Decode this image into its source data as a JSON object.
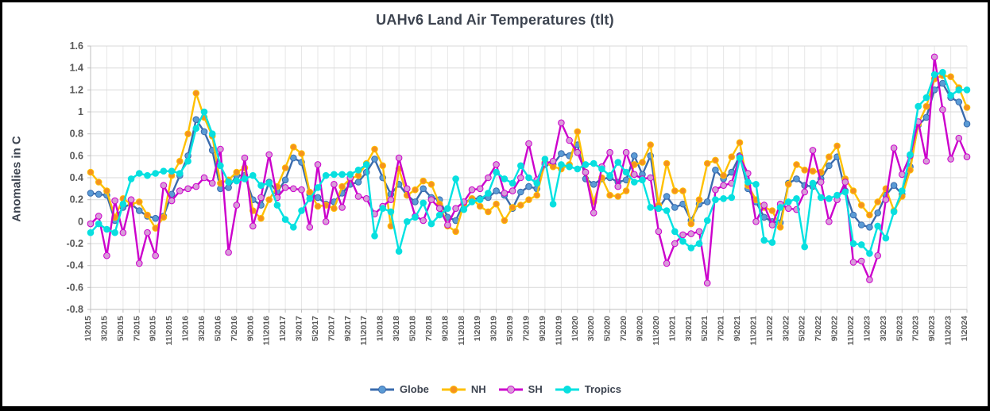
{
  "chart": {
    "title": "UAHv6 Land Air Temperatures (tlt)",
    "y_axis_label": "Anomalies in C"
  },
  "legend": {
    "items": [
      {
        "label": "Globe"
      },
      {
        "label": "NH"
      },
      {
        "label": "SH"
      },
      {
        "label": "Tropics"
      }
    ]
  },
  "chart_data": {
    "type": "line",
    "title": "UAHv6 Land Air Temperatures (tlt)",
    "xlabel": "",
    "ylabel": "Anomalies in C",
    "ylim": [
      -0.8,
      1.6
    ],
    "y_tick_step": 0.2,
    "x_label_interval": 2,
    "grid": true,
    "legend_position": "bottom",
    "x": [
      "1\\2015",
      "2\\2015",
      "3\\2015",
      "4\\2015",
      "5\\2015",
      "6\\2015",
      "7\\2015",
      "8\\2015",
      "9\\2015",
      "10\\2015",
      "11\\2015",
      "12\\2015",
      "1\\2016",
      "2\\2016",
      "3\\2016",
      "4\\2016",
      "5\\2016",
      "6\\2016",
      "7\\2016",
      "8\\2016",
      "9\\2016",
      "10\\2016",
      "11\\2016",
      "12\\2016",
      "1\\2017",
      "2\\2017",
      "3\\2017",
      "4\\2017",
      "5\\2017",
      "6\\2017",
      "7\\2017",
      "8\\2017",
      "9\\2017",
      "10\\2017",
      "11\\2017",
      "12\\2017",
      "1\\2018",
      "2\\2018",
      "3\\2018",
      "4\\2018",
      "5\\2018",
      "6\\2018",
      "7\\2018",
      "8\\2018",
      "9\\2018",
      "10\\2018",
      "11\\2018",
      "12\\2018",
      "1\\2019",
      "2\\2019",
      "3\\2019",
      "4\\2019",
      "5\\2019",
      "6\\2019",
      "7\\2019",
      "8\\2019",
      "9\\2019",
      "10\\2019",
      "11\\2019",
      "12\\2019",
      "1\\2020",
      "2\\2020",
      "3\\2020",
      "4\\2020",
      "5\\2020",
      "6\\2020",
      "7\\2020",
      "8\\2020",
      "9\\2020",
      "10\\2020",
      "11\\2020",
      "12\\2020",
      "1\\2021",
      "2\\2021",
      "3\\2021",
      "4\\2021",
      "5\\2021",
      "6\\2021",
      "7\\2021",
      "8\\2021",
      "9\\2021",
      "10\\2021",
      "11\\2021",
      "12\\2021",
      "1\\2022",
      "2\\2022",
      "3\\2022",
      "4\\2022",
      "5\\2022",
      "6\\2022",
      "7\\2022",
      "8\\2022",
      "9\\2022",
      "10\\2022",
      "11\\2022",
      "12\\2022",
      "1\\2023",
      "2\\2023",
      "3\\2023",
      "4\\2023",
      "5\\2023",
      "6\\2023",
      "7\\2023",
      "8\\2023",
      "9\\2023",
      "10\\2023",
      "11\\2023",
      "12\\2023",
      "1\\2024"
    ],
    "series": [
      {
        "name": "Globe",
        "line_color": "#3a6bad",
        "marker_color": "#5b9bd5",
        "values": [
          0.26,
          0.25,
          0.24,
          0.01,
          0.13,
          0.16,
          0.1,
          0.05,
          0.03,
          0.05,
          0.25,
          0.42,
          0.6,
          0.93,
          0.82,
          0.65,
          0.3,
          0.31,
          0.42,
          0.42,
          0.2,
          0.15,
          0.36,
          0.27,
          0.38,
          0.58,
          0.54,
          0.25,
          0.22,
          0.16,
          0.18,
          0.26,
          0.34,
          0.36,
          0.45,
          0.57,
          0.4,
          0.25,
          0.34,
          0.24,
          0.18,
          0.3,
          0.22,
          0.2,
          0.04,
          0.01,
          0.17,
          0.21,
          0.21,
          0.22,
          0.28,
          0.24,
          0.12,
          0.27,
          0.32,
          0.3,
          0.52,
          0.52,
          0.62,
          0.6,
          0.7,
          0.39,
          0.34,
          0.39,
          0.4,
          0.36,
          0.38,
          0.6,
          0.43,
          0.6,
          0.12,
          0.23,
          0.13,
          0.16,
          0.01,
          0.16,
          0.18,
          0.47,
          0.39,
          0.45,
          0.6,
          0.3,
          0.18,
          0.04,
          0.0,
          -0.01,
          0.35,
          0.39,
          0.33,
          0.32,
          0.39,
          0.51,
          0.59,
          0.28,
          0.06,
          -0.03,
          -0.05,
          0.08,
          0.24,
          0.33,
          0.25,
          0.5,
          0.88,
          0.95,
          1.2,
          1.26,
          1.13,
          1.09,
          0.89
        ]
      },
      {
        "name": "NH",
        "line_color": "#ffc000",
        "marker_color": "#f5921e",
        "values": [
          0.45,
          0.36,
          0.28,
          0.04,
          0.21,
          0.16,
          0.18,
          0.06,
          -0.06,
          0.04,
          0.42,
          0.55,
          0.8,
          1.17,
          0.95,
          0.78,
          0.35,
          0.38,
          0.45,
          0.49,
          0.1,
          0.03,
          0.2,
          0.32,
          0.49,
          0.68,
          0.62,
          0.27,
          0.14,
          0.15,
          0.12,
          0.32,
          0.39,
          0.42,
          0.53,
          0.66,
          0.51,
          -0.04,
          0.48,
          0.24,
          0.29,
          0.37,
          0.34,
          0.16,
          -0.04,
          -0.09,
          0.16,
          0.21,
          0.14,
          0.09,
          0.16,
          0.01,
          0.13,
          0.15,
          0.2,
          0.24,
          0.54,
          0.5,
          0.48,
          0.52,
          0.82,
          0.45,
          0.18,
          0.4,
          0.24,
          0.23,
          0.28,
          0.52,
          0.54,
          0.7,
          0.15,
          0.53,
          0.28,
          0.28,
          -0.02,
          0.2,
          0.53,
          0.56,
          0.42,
          0.59,
          0.72,
          0.33,
          0.2,
          0.13,
          0.1,
          -0.05,
          0.34,
          0.52,
          0.47,
          0.46,
          0.45,
          0.59,
          0.69,
          0.39,
          0.28,
          0.15,
          0.06,
          0.18,
          0.3,
          0.1,
          0.23,
          0.47,
          0.89,
          1.05,
          1.3,
          1.33,
          1.32,
          1.22,
          1.04
        ]
      },
      {
        "name": "SH",
        "line_color": "#cc00cc",
        "marker_color": "#d89bd8",
        "values": [
          -0.02,
          0.05,
          -0.31,
          0.19,
          -0.1,
          0.2,
          -0.38,
          -0.1,
          -0.31,
          0.33,
          0.19,
          0.28,
          0.3,
          0.32,
          0.4,
          0.35,
          0.66,
          -0.28,
          0.15,
          0.58,
          -0.04,
          0.22,
          0.61,
          0.22,
          0.31,
          0.3,
          0.29,
          -0.05,
          0.52,
          0.0,
          0.34,
          0.13,
          0.4,
          0.23,
          0.21,
          0.07,
          0.14,
          0.2,
          0.58,
          0.3,
          0.05,
          0.01,
          0.2,
          0.12,
          -0.03,
          0.12,
          0.18,
          0.29,
          0.3,
          0.4,
          0.52,
          0.26,
          0.28,
          0.4,
          0.71,
          0.38,
          0.53,
          0.55,
          0.9,
          0.74,
          0.63,
          0.45,
          0.08,
          0.5,
          0.63,
          0.32,
          0.63,
          0.43,
          0.39,
          0.4,
          -0.09,
          -0.38,
          -0.2,
          -0.12,
          -0.11,
          -0.09,
          -0.56,
          0.29,
          0.33,
          0.35,
          0.59,
          0.44,
          0.0,
          0.15,
          -0.03,
          0.16,
          0.12,
          0.11,
          0.27,
          0.65,
          0.36,
          0.0,
          0.2,
          0.36,
          -0.37,
          -0.36,
          -0.53,
          -0.31,
          0.2,
          0.67,
          0.43,
          0.6,
          0.91,
          0.55,
          1.5,
          1.02,
          0.57,
          0.76,
          0.59
        ]
      },
      {
        "name": "Tropics",
        "line_color": "#00e2e2",
        "marker_color": "#0adede",
        "values": [
          -0.1,
          -0.02,
          -0.07,
          -0.1,
          0.16,
          0.39,
          0.44,
          0.42,
          0.44,
          0.46,
          0.46,
          0.44,
          0.55,
          0.85,
          1.0,
          0.8,
          0.51,
          0.36,
          0.37,
          0.39,
          0.42,
          0.33,
          0.35,
          0.15,
          0.02,
          -0.05,
          0.1,
          0.21,
          0.31,
          0.42,
          0.43,
          0.43,
          0.43,
          0.47,
          0.52,
          -0.13,
          0.12,
          0.09,
          -0.27,
          0.0,
          0.04,
          0.17,
          -0.02,
          0.06,
          0.12,
          0.39,
          0.11,
          0.18,
          0.2,
          0.26,
          0.45,
          0.39,
          0.35,
          0.51,
          0.4,
          0.35,
          0.57,
          0.16,
          0.52,
          0.5,
          0.48,
          0.52,
          0.53,
          0.48,
          0.42,
          0.54,
          0.45,
          0.36,
          0.38,
          0.13,
          0.12,
          0.1,
          -0.09,
          -0.18,
          -0.24,
          -0.2,
          0.01,
          0.2,
          0.21,
          0.22,
          0.58,
          0.36,
          0.34,
          -0.17,
          -0.19,
          0.13,
          0.18,
          0.21,
          -0.23,
          0.35,
          0.22,
          0.21,
          0.24,
          0.27,
          -0.2,
          -0.21,
          -0.29,
          -0.04,
          -0.15,
          0.09,
          0.28,
          0.61,
          1.05,
          1.13,
          1.34,
          1.36,
          1.15,
          1.2,
          1.2
        ]
      }
    ]
  },
  "colors": {
    "title_text": "#3d4450",
    "axis_text": "#595959",
    "gridline": "#d9d9d9",
    "vertical_gridline": "#e7e7e7",
    "axis_line": "#bfbfbf",
    "frame_border": "#000000",
    "background": "#ffffff"
  }
}
